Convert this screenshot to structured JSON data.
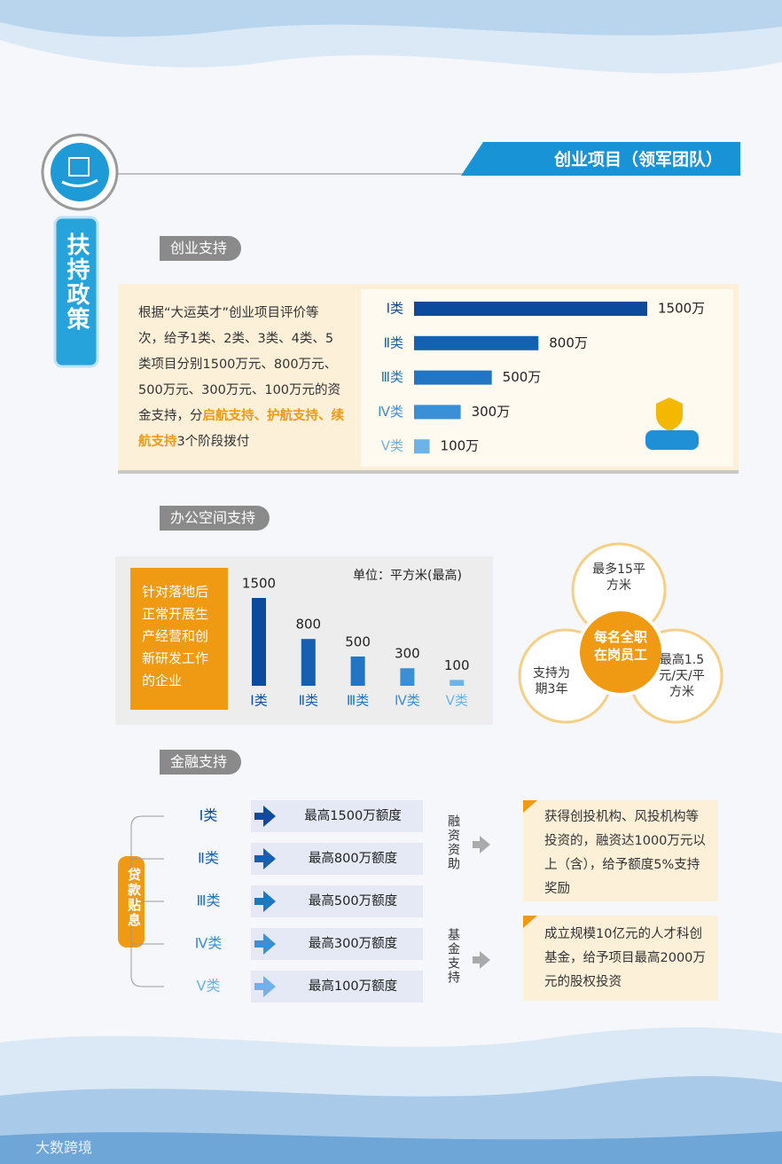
{
  "header": {
    "badge": "创业项目（领军团队）",
    "side_title": "扶持政策"
  },
  "startup_support": {
    "title": "创业支持",
    "text_parts": [
      {
        "text": "根据“大运英才”创业项目评价等次，给予1类、2类、3类、4类、5类项目分别1500万元、800万元、500万元、300万元、100万元的资金支持，分",
        "highlight": false
      },
      {
        "text": "启航支持、护航支持、续航支持",
        "highlight": true
      },
      {
        "text": "3个阶段拨付",
        "highlight": false
      }
    ]
  },
  "office_support": {
    "title": "办公空间支持",
    "target": "针对落地后正常开展生产经营和创新研发工作的企业",
    "venn": {
      "center": "每名全职在岗员工",
      "top": "最多15平方米",
      "left": "支持为期3年",
      "right": "最高1.5元/天/平方米"
    }
  },
  "finance_support": {
    "title": "金融支持",
    "loan_label": "贷款贴息",
    "loans": [
      {
        "category": "Ⅰ类",
        "text": "最高1500万额度"
      },
      {
        "category": "Ⅱ类",
        "text": "最高800万额度"
      },
      {
        "category": "Ⅲ类",
        "text": "最高500万额度"
      },
      {
        "category": "Ⅳ类",
        "text": "最高300万额度"
      },
      {
        "category": "Ⅴ类",
        "text": "最高100万额度"
      }
    ],
    "financing": {
      "label": "融资资助",
      "text": "获得创投机构、风投机构等投资的，融资达1000万元以上（含），给予额度5%支持奖励"
    },
    "fund": {
      "label": "基金支持",
      "text": "成立规模10亿元的人才科创基金，给予项目最高2000万元的股权投资"
    }
  },
  "watermark": "大数跨境",
  "chart_data": [
    {
      "type": "bar",
      "orientation": "horizontal",
      "categories": [
        "Ⅰ类",
        "Ⅱ类",
        "Ⅲ类",
        "Ⅳ类",
        "Ⅴ类"
      ],
      "values": [
        1500,
        800,
        500,
        300,
        100
      ],
      "value_labels": [
        "1500万",
        "800万",
        "500万",
        "300万",
        "100万"
      ],
      "colors": [
        "#0b4a9c",
        "#1660b2",
        "#2275c2",
        "#3a8fd6",
        "#6bb3e8"
      ]
    },
    {
      "type": "bar",
      "orientation": "vertical",
      "unit": "单位：平方米(最高)",
      "categories": [
        "Ⅰ类",
        "Ⅱ类",
        "Ⅲ类",
        "Ⅳ类",
        "Ⅴ类"
      ],
      "values": [
        1500,
        800,
        500,
        300,
        100
      ],
      "colors": [
        "#0b4a9c",
        "#1660b2",
        "#2275c2",
        "#3a8fd6",
        "#6bb3e8"
      ]
    }
  ]
}
